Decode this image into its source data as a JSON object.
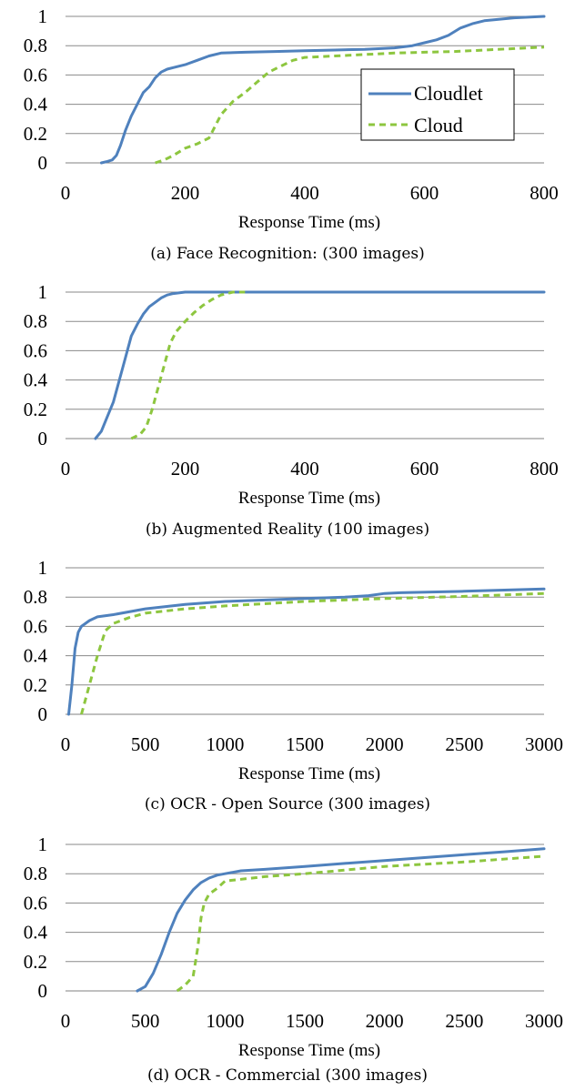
{
  "legend": {
    "cloudlet": "Cloudlet",
    "cloud": "Cloud"
  },
  "colors": {
    "cloudlet": "#4F81BD",
    "cloud": "#8DC63F"
  },
  "chart_data": [
    {
      "type": "line",
      "caption": "(a) Face Recognition: (300 images)",
      "xlabel": "Response Time (ms)",
      "ylabel": "",
      "xlim": [
        0,
        800
      ],
      "ylim": [
        0,
        1
      ],
      "xticks": [
        "0",
        "200",
        "400",
        "600",
        "800"
      ],
      "yticks": [
        "0",
        "0.2",
        "0.4",
        "0.6",
        "0.8",
        "1"
      ],
      "grid": "horizontal",
      "legend_position": "right",
      "series": [
        {
          "name": "Cloudlet",
          "style": "solid",
          "x": [
            60,
            70,
            78,
            85,
            92,
            100,
            110,
            120,
            130,
            140,
            150,
            160,
            170,
            180,
            200,
            220,
            240,
            260,
            300,
            350,
            400,
            450,
            500,
            550,
            580,
            600,
            620,
            640,
            660,
            680,
            700,
            750,
            800
          ],
          "y": [
            0,
            0.01,
            0.02,
            0.05,
            0.12,
            0.22,
            0.32,
            0.4,
            0.48,
            0.52,
            0.58,
            0.62,
            0.64,
            0.65,
            0.67,
            0.7,
            0.73,
            0.75,
            0.755,
            0.76,
            0.765,
            0.77,
            0.775,
            0.785,
            0.8,
            0.82,
            0.84,
            0.87,
            0.92,
            0.95,
            0.97,
            0.99,
            1.0
          ]
        },
        {
          "name": "Cloud",
          "style": "dashed",
          "x": [
            150,
            165,
            180,
            200,
            220,
            240,
            250,
            260,
            280,
            300,
            320,
            340,
            360,
            380,
            400,
            450,
            500,
            550,
            600,
            650,
            700,
            750,
            800
          ],
          "y": [
            0,
            0.02,
            0.05,
            0.1,
            0.13,
            0.17,
            0.25,
            0.33,
            0.42,
            0.48,
            0.55,
            0.62,
            0.66,
            0.7,
            0.72,
            0.73,
            0.74,
            0.75,
            0.755,
            0.76,
            0.77,
            0.78,
            0.79
          ]
        }
      ]
    },
    {
      "type": "line",
      "caption": "(b) Augmented Reality (100 images)",
      "xlabel": "Response Time (ms)",
      "ylabel": "",
      "xlim": [
        0,
        800
      ],
      "ylim": [
        0,
        1
      ],
      "xticks": [
        "0",
        "200",
        "400",
        "600",
        "800"
      ],
      "yticks": [
        "0",
        "0.2",
        "0.4",
        "0.6",
        "0.8",
        "1"
      ],
      "grid": "horizontal",
      "series": [
        {
          "name": "Cloudlet",
          "style": "solid",
          "x": [
            50,
            60,
            70,
            80,
            90,
            100,
            110,
            120,
            130,
            140,
            150,
            160,
            170,
            180,
            200,
            300,
            400,
            600,
            800
          ],
          "y": [
            0,
            0.05,
            0.15,
            0.25,
            0.4,
            0.55,
            0.7,
            0.78,
            0.85,
            0.9,
            0.93,
            0.96,
            0.98,
            0.99,
            1.0,
            1.0,
            1.0,
            1.0,
            1.0
          ]
        },
        {
          "name": "Cloud",
          "style": "dashed",
          "x": [
            110,
            125,
            135,
            145,
            155,
            165,
            175,
            185,
            200,
            215,
            230,
            245,
            260,
            280,
            300
          ],
          "y": [
            0,
            0.03,
            0.08,
            0.2,
            0.35,
            0.5,
            0.65,
            0.73,
            0.8,
            0.86,
            0.91,
            0.95,
            0.98,
            1.0,
            1.0
          ]
        }
      ]
    },
    {
      "type": "line",
      "caption": "(c) OCR - Open Source (300 images)",
      "xlabel": "Response Time (ms)",
      "ylabel": "",
      "xlim": [
        0,
        3000
      ],
      "ylim": [
        0,
        1
      ],
      "xticks": [
        "0",
        "500",
        "1000",
        "1500",
        "2000",
        "2500",
        "3000"
      ],
      "yticks": [
        "0",
        "0.2",
        "0.4",
        "0.6",
        "0.8",
        "1"
      ],
      "grid": "horizontal",
      "series": [
        {
          "name": "Cloudlet",
          "style": "solid",
          "x": [
            20,
            40,
            60,
            80,
            100,
            150,
            200,
            300,
            500,
            750,
            1000,
            1250,
            1500,
            1750,
            1900,
            2000,
            2100,
            2500,
            3000
          ],
          "y": [
            0,
            0.2,
            0.45,
            0.56,
            0.6,
            0.64,
            0.665,
            0.68,
            0.72,
            0.75,
            0.77,
            0.78,
            0.79,
            0.8,
            0.81,
            0.825,
            0.83,
            0.84,
            0.855
          ]
        },
        {
          "name": "Cloud",
          "style": "dashed",
          "x": [
            100,
            150,
            200,
            250,
            300,
            400,
            500,
            750,
            1000,
            1500,
            2000,
            2500,
            3000
          ],
          "y": [
            0,
            0.2,
            0.4,
            0.57,
            0.62,
            0.66,
            0.69,
            0.72,
            0.74,
            0.77,
            0.79,
            0.805,
            0.825
          ]
        }
      ]
    },
    {
      "type": "line",
      "caption": "(d) OCR - Commercial (300 images)",
      "xlabel": "Response Time (ms)",
      "ylabel": "",
      "xlim": [
        0,
        3000
      ],
      "ylim": [
        0,
        1
      ],
      "xticks": [
        "0",
        "500",
        "1000",
        "1500",
        "2000",
        "2500",
        "3000"
      ],
      "yticks": [
        "0",
        "0.2",
        "0.4",
        "0.6",
        "0.8",
        "1"
      ],
      "grid": "horizontal",
      "series": [
        {
          "name": "Cloudlet",
          "style": "solid",
          "x": [
            450,
            500,
            550,
            600,
            650,
            700,
            750,
            800,
            850,
            900,
            950,
            1000,
            1100,
            1250,
            1500,
            1750,
            2000,
            2250,
            2500,
            2750,
            3000
          ],
          "y": [
            0,
            0.03,
            0.12,
            0.25,
            0.4,
            0.53,
            0.62,
            0.69,
            0.74,
            0.77,
            0.79,
            0.8,
            0.82,
            0.83,
            0.85,
            0.87,
            0.89,
            0.91,
            0.93,
            0.95,
            0.97
          ]
        },
        {
          "name": "Cloud",
          "style": "dashed",
          "x": [
            700,
            750,
            800,
            830,
            850,
            870,
            900,
            950,
            1000,
            1250,
            1500,
            2000,
            2500,
            3000
          ],
          "y": [
            0,
            0.04,
            0.1,
            0.3,
            0.5,
            0.6,
            0.66,
            0.7,
            0.75,
            0.78,
            0.8,
            0.85,
            0.88,
            0.92
          ]
        }
      ]
    }
  ]
}
